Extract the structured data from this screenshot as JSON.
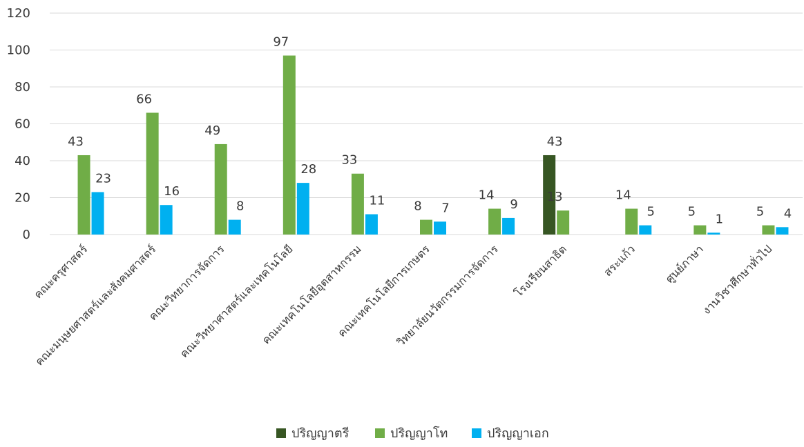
{
  "chart_data": {
    "type": "bar",
    "title": "",
    "xlabel": "",
    "ylabel": "",
    "ylim": [
      0,
      120
    ],
    "yticks": [
      0,
      20,
      40,
      60,
      80,
      100,
      120
    ],
    "grid": true,
    "legend": "bottom",
    "categories": [
      "คณะครุศาสตร์",
      "คณะมนุษยศาสตร์และสังคมศาสตร์",
      "คณะวิทยาการจัดการ",
      "คณะวิทยาศาสตร์และเทคโนโลยี",
      "คณะเทคโนโลยีอุตสาหกรรม",
      "คณะเทคโนโลยีการเกษตร",
      "วิทยาลัยนวัตกรรมการจัดการ",
      "โรงเรียนสาธิต",
      "สระแก้ว",
      "ศูนย์ภาษา",
      "งานวิชาศึกษาทั่วไป"
    ],
    "series": [
      {
        "name": "ปริญญาตรี",
        "color": "#375623",
        "values": [
          null,
          null,
          null,
          null,
          null,
          null,
          null,
          43,
          null,
          null,
          null
        ]
      },
      {
        "name": "ปริญญาโท",
        "color": "#70ad47",
        "values": [
          43,
          66,
          49,
          97,
          33,
          8,
          14,
          13,
          14,
          5,
          5
        ]
      },
      {
        "name": "ปริญญาเอก",
        "color": "#00b0f0",
        "values": [
          23,
          16,
          8,
          28,
          11,
          7,
          9,
          null,
          5,
          1,
          4
        ]
      }
    ]
  }
}
